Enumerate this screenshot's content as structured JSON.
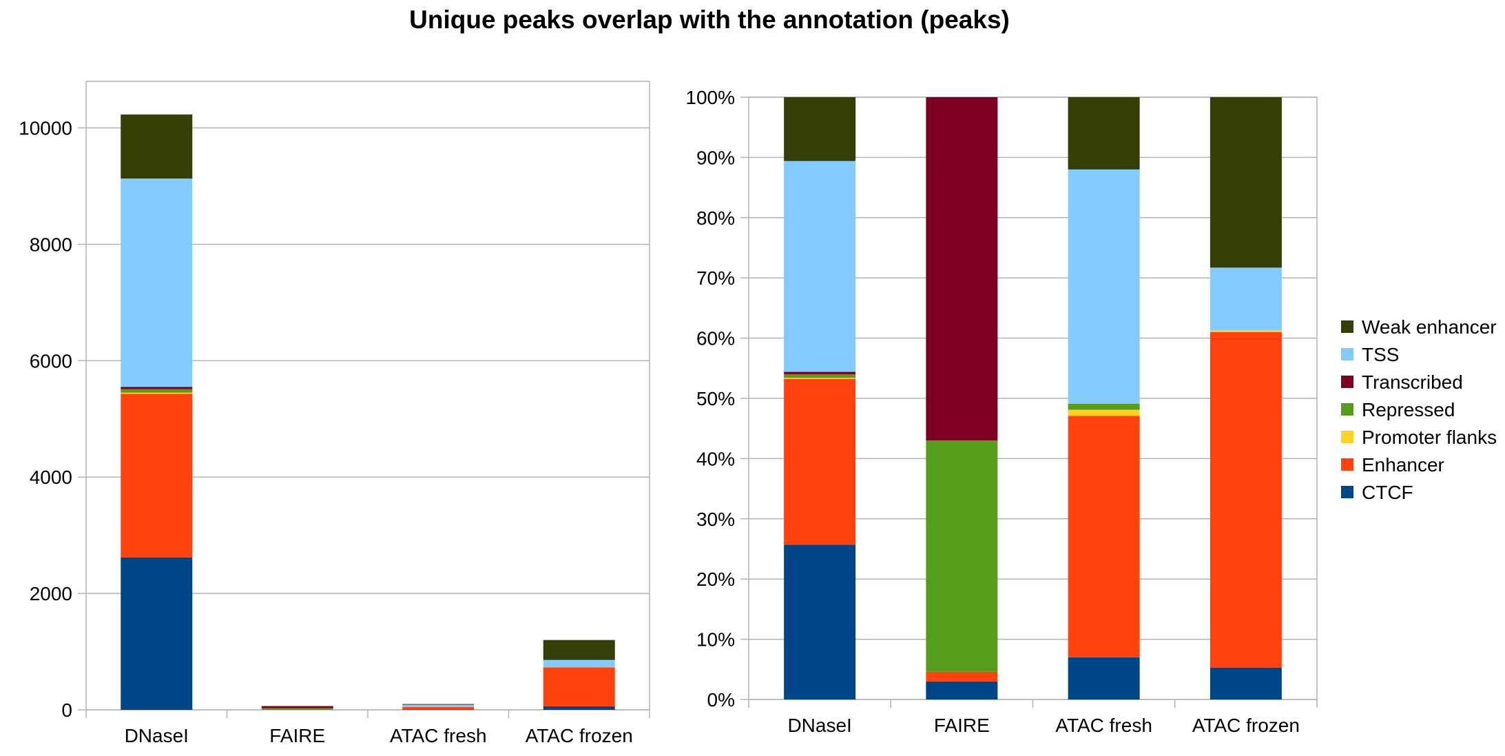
{
  "title": "Unique peaks overlap with the annotation (peaks)",
  "legend": {
    "placement": "right",
    "items": [
      {
        "name": "Weak enhancer",
        "color": "#333f05"
      },
      {
        "name": "TSS",
        "color": "#83caff"
      },
      {
        "name": "Transcribed",
        "color": "#7e0021"
      },
      {
        "name": "Repressed",
        "color": "#579d1c"
      },
      {
        "name": "Promoter flanks",
        "color": "#ffd320"
      },
      {
        "name": "Enhancer",
        "color": "#ff420e"
      },
      {
        "name": "CTCF",
        "color": "#004586"
      }
    ]
  },
  "chart_data": [
    {
      "type": "bar",
      "stacked": true,
      "title": "",
      "xlabel": "",
      "ylabel": "",
      "categories": [
        "DNaseI",
        "FAIRE",
        "ATAC fresh",
        "ATAC frozen"
      ],
      "ylim": [
        0,
        10800
      ],
      "yticks": [
        0,
        2000,
        4000,
        6000,
        8000,
        10000
      ],
      "grid": true,
      "series": [
        {
          "name": "CTCF",
          "color": "#004586",
          "values": [
            2620,
            2,
            7,
            60
          ]
        },
        {
          "name": "Enhancer",
          "color": "#ff420e",
          "values": [
            2810,
            1,
            40,
            670
          ]
        },
        {
          "name": "Promoter flanks",
          "color": "#ffd320",
          "values": [
            20,
            0,
            1,
            2
          ]
        },
        {
          "name": "Repressed",
          "color": "#579d1c",
          "values": [
            60,
            25,
            1,
            0
          ]
        },
        {
          "name": "Transcribed",
          "color": "#7e0021",
          "values": [
            40,
            37,
            0,
            0
          ]
        },
        {
          "name": "TSS",
          "color": "#83caff",
          "values": [
            3580,
            0,
            39,
            125
          ]
        },
        {
          "name": "Weak enhancer",
          "color": "#333f05",
          "values": [
            1100,
            0,
            12,
            343
          ]
        }
      ]
    },
    {
      "type": "bar",
      "stacked": true,
      "normalized": true,
      "title": "",
      "xlabel": "",
      "ylabel": "",
      "categories": [
        "DNaseI",
        "FAIRE",
        "ATAC fresh",
        "ATAC frozen"
      ],
      "ylim": [
        0,
        100
      ],
      "yticks": [
        "0%",
        "10%",
        "20%",
        "30%",
        "40%",
        "50%",
        "60%",
        "70%",
        "80%",
        "90%",
        "100%"
      ],
      "grid": true,
      "series": [
        {
          "name": "CTCF",
          "color": "#004586",
          "values": [
            25.7,
            3.0,
            7.0,
            5.3
          ]
        },
        {
          "name": "Enhancer",
          "color": "#ff420e",
          "values": [
            27.5,
            1.6,
            40.1,
            55.7
          ]
        },
        {
          "name": "Promoter flanks",
          "color": "#ffd320",
          "values": [
            0.2,
            0.0,
            1.0,
            0.3
          ]
        },
        {
          "name": "Repressed",
          "color": "#579d1c",
          "values": [
            0.6,
            38.4,
            1.0,
            0.0
          ]
        },
        {
          "name": "Transcribed",
          "color": "#7e0021",
          "values": [
            0.4,
            57.0,
            0.0,
            0.0
          ]
        },
        {
          "name": "TSS",
          "color": "#83caff",
          "values": [
            35.0,
            0.0,
            38.9,
            10.4
          ]
        },
        {
          "name": "Weak enhancer",
          "color": "#333f05",
          "values": [
            10.6,
            0.0,
            12.0,
            28.3
          ]
        }
      ]
    }
  ]
}
